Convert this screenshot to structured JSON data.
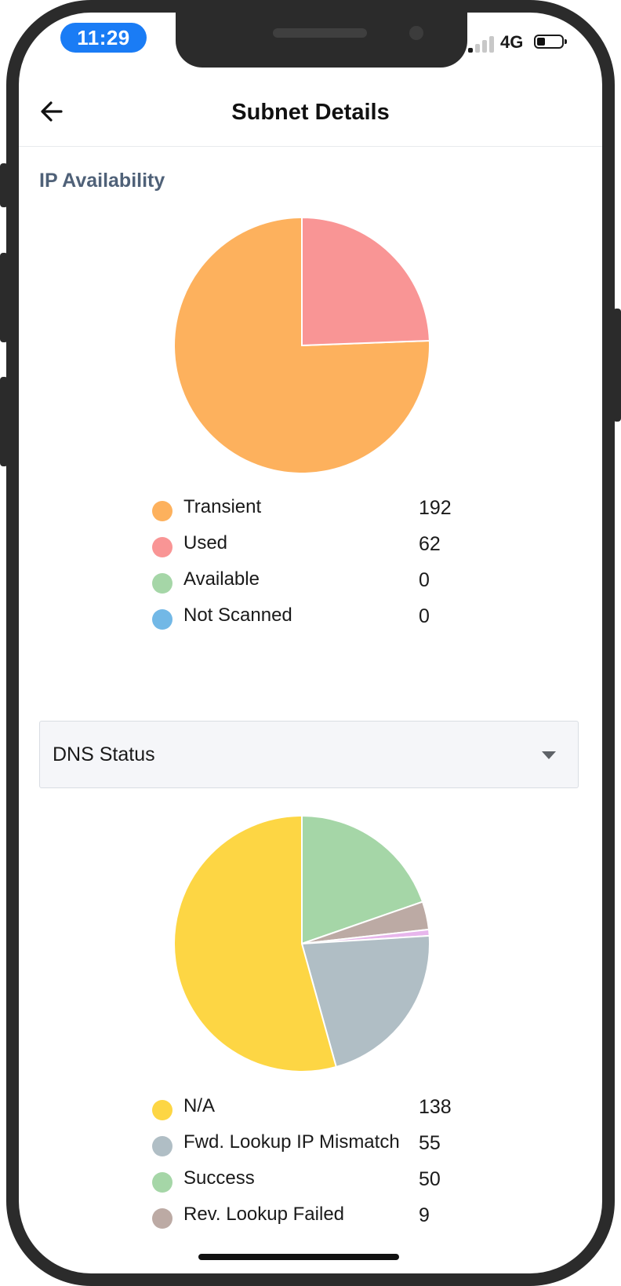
{
  "status_bar": {
    "time": "11:29",
    "network": "4G",
    "signal_bars_active": 1,
    "battery_level": 0.3
  },
  "header": {
    "title": "Subnet Details",
    "back_icon": "arrow-left-icon"
  },
  "ip_availability": {
    "section_title": "IP Availability",
    "legend": [
      {
        "label": "Transient",
        "value": "192",
        "color": "#fdb15d"
      },
      {
        "label": "Used",
        "value": "62",
        "color": "#f99595"
      },
      {
        "label": "Available",
        "value": "0",
        "color": "#a5d6a7"
      },
      {
        "label": "Not Scanned",
        "value": "0",
        "color": "#72b8e6"
      }
    ]
  },
  "dns_filter": {
    "selected": "DNS Status",
    "caret_icon": "caret-down-icon"
  },
  "dns_status": {
    "legend": [
      {
        "label": "N/A",
        "value": "138",
        "color": "#fdd644"
      },
      {
        "label": "Fwd. Lookup IP Mismatch",
        "value": "55",
        "color": "#b0bec5"
      },
      {
        "label": "Success",
        "value": "50",
        "color": "#a5d6a7"
      },
      {
        "label": "Rev. Lookup Failed",
        "value": "9",
        "color": "#bcaaa4"
      }
    ],
    "extra_slice_color": "#e7b6ec"
  },
  "chart_data": [
    {
      "type": "pie",
      "title": "IP Availability",
      "categories": [
        "Transient",
        "Used",
        "Available",
        "Not Scanned"
      ],
      "values": [
        192,
        62,
        0,
        0
      ],
      "colors": [
        "#fdb15d",
        "#f99595",
        "#a5d6a7",
        "#72b8e6"
      ]
    },
    {
      "type": "pie",
      "title": "DNS Status",
      "categories": [
        "N/A",
        "Fwd. Lookup IP Mismatch",
        "Success",
        "Rev. Lookup Failed",
        ""
      ],
      "values": [
        138,
        55,
        50,
        9,
        2
      ],
      "colors": [
        "#fdd644",
        "#b0bec5",
        "#a5d6a7",
        "#bcaaa4",
        "#e7b6ec"
      ]
    }
  ]
}
